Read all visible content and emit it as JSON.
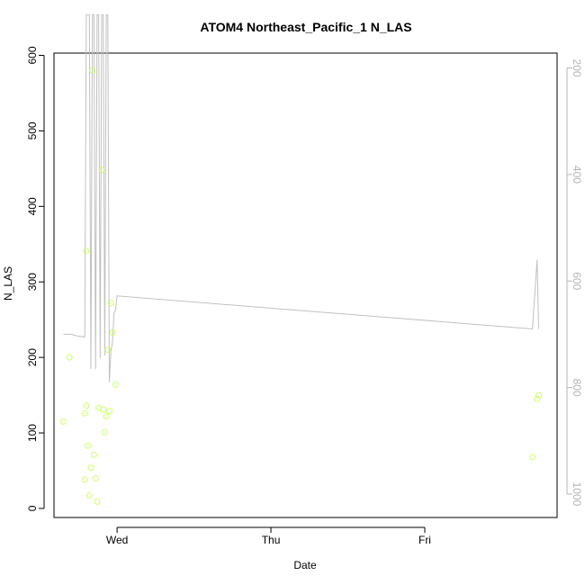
{
  "chart_data": {
    "type": "scatter",
    "title": "ATOM4 Northeast_Pacific_1 N_LAS",
    "xlabel": "Date",
    "ylabel": "N_LAS",
    "xlim": [
      -0.41,
      2.86
    ],
    "ylim": [
      -12,
      603
    ],
    "y2lim": [
      1044,
      172
    ],
    "x_ticks": [
      {
        "label": "Wed",
        "value": 0
      },
      {
        "label": "Thu",
        "value": 1
      },
      {
        "label": "Fri",
        "value": 2
      }
    ],
    "y_ticks": [
      0,
      100,
      200,
      300,
      400,
      500,
      600
    ],
    "y2_ticks": [
      200,
      400,
      600,
      800,
      1000
    ],
    "grid": false,
    "point_color": "#ccff66",
    "line_color": "#c0c0c0",
    "axis_color": "#000000",
    "right_axis_color": "#b4b4b4",
    "series": [
      {
        "type": "points",
        "x": [
          -0.35,
          -0.31,
          -0.21,
          -0.21,
          -0.2,
          -0.2,
          -0.19,
          -0.18,
          -0.17,
          -0.16,
          -0.15,
          -0.14,
          -0.13,
          -0.12,
          -0.1,
          -0.09,
          -0.08,
          -0.07,
          -0.06,
          -0.05,
          -0.04,
          -0.03,
          -0.01,
          2.7,
          2.73,
          2.74
        ],
        "y": [
          115,
          200,
          38,
          126,
          136,
          341,
          83,
          17,
          54,
          580,
          71,
          40,
          9,
          133,
          448,
          131,
          101,
          122,
          210,
          129,
          272,
          233,
          164,
          68,
          145,
          150
        ]
      },
      {
        "type": "line",
        "axis": "right",
        "x": [
          -0.35,
          -0.3,
          -0.26,
          -0.21,
          -0.2,
          -0.18,
          -0.17,
          -0.16,
          -0.15,
          -0.14,
          -0.13,
          -0.12,
          -0.11,
          -0.1,
          -0.09,
          -0.08,
          -0.07,
          -0.06,
          -0.05,
          -0.04,
          -0.03,
          -0.02,
          -0.01,
          0.0,
          2.7,
          2.73,
          2.74
        ],
        "y": [
          700,
          700,
          703,
          705,
          100,
          100,
          765,
          100,
          100,
          765,
          100,
          100,
          745,
          100,
          100,
          740,
          100,
          100,
          790,
          730,
          715,
          660,
          655,
          628,
          690,
          560,
          690
        ]
      }
    ]
  }
}
